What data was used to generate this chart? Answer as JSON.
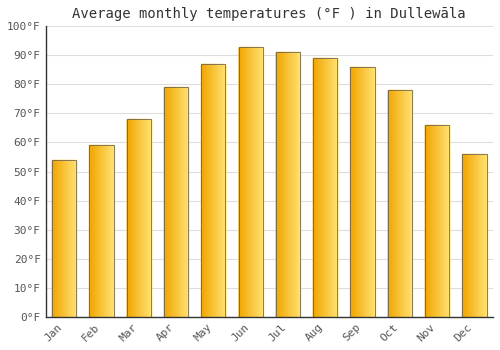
{
  "title": "Average monthly temperatures (°F ) in Dullewāla",
  "months": [
    "Jan",
    "Feb",
    "Mar",
    "Apr",
    "May",
    "Jun",
    "Jul",
    "Aug",
    "Sep",
    "Oct",
    "Nov",
    "Dec"
  ],
  "values": [
    54,
    59,
    68,
    79,
    87,
    93,
    91,
    89,
    86,
    78,
    66,
    56
  ],
  "bar_color_left": "#F0A500",
  "bar_color_right": "#FFE070",
  "bar_outline": "#555555",
  "ylim": [
    0,
    100
  ],
  "yticks": [
    0,
    10,
    20,
    30,
    40,
    50,
    60,
    70,
    80,
    90,
    100
  ],
  "ytick_labels": [
    "0°F",
    "10°F",
    "20°F",
    "30°F",
    "40°F",
    "50°F",
    "60°F",
    "70°F",
    "80°F",
    "90°F",
    "100°F"
  ],
  "background_color": "#ffffff",
  "grid_color": "#dddddd",
  "title_fontsize": 10,
  "tick_fontsize": 8,
  "font_family": "monospace",
  "tick_color": "#555555",
  "spine_color": "#333333"
}
